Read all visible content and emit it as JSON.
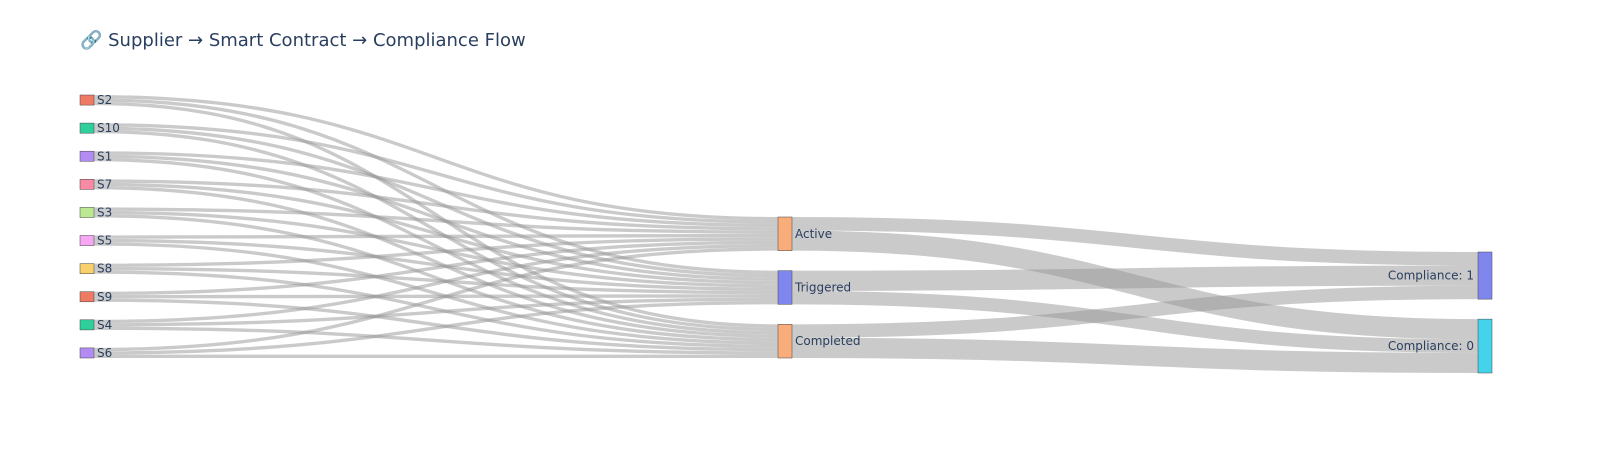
{
  "chart_data": {
    "type": "sankey",
    "title": "🔗 Supplier → Smart Contract → Compliance Flow",
    "nodes": [
      {
        "id": "S2",
        "label": "S2",
        "color": "#ef7a63"
      },
      {
        "id": "S10",
        "label": "S10",
        "color": "#2fcf9b"
      },
      {
        "id": "S1",
        "label": "S1",
        "color": "#b28cf2"
      },
      {
        "id": "S7",
        "label": "S7",
        "color": "#f98aa5"
      },
      {
        "id": "S3",
        "label": "S3",
        "color": "#bde893"
      },
      {
        "id": "S5",
        "label": "S5",
        "color": "#f6a8f4"
      },
      {
        "id": "S8",
        "label": "S8",
        "color": "#f8d16d"
      },
      {
        "id": "S9",
        "label": "S9",
        "color": "#ef7a63"
      },
      {
        "id": "S4",
        "label": "S4",
        "color": "#2fcf9b"
      },
      {
        "id": "S6",
        "label": "S6",
        "color": "#b28cf2"
      },
      {
        "id": "Active",
        "label": "Active",
        "color": "#f8ad7a"
      },
      {
        "id": "Triggered",
        "label": "Triggered",
        "color": "#7f86ee"
      },
      {
        "id": "Completed",
        "label": "Completed",
        "color": "#f8ad7a"
      },
      {
        "id": "C1",
        "label": "Compliance: 1",
        "color": "#7f86ee"
      },
      {
        "id": "C0",
        "label": "Compliance: 0",
        "color": "#44d3ea"
      }
    ],
    "links": [
      {
        "source": "S2",
        "target": "Active",
        "value": 1
      },
      {
        "source": "S2",
        "target": "Triggered",
        "value": 1
      },
      {
        "source": "S2",
        "target": "Completed",
        "value": 1
      },
      {
        "source": "S10",
        "target": "Active",
        "value": 1
      },
      {
        "source": "S10",
        "target": "Triggered",
        "value": 1
      },
      {
        "source": "S10",
        "target": "Completed",
        "value": 1
      },
      {
        "source": "S1",
        "target": "Active",
        "value": 1
      },
      {
        "source": "S1",
        "target": "Triggered",
        "value": 1
      },
      {
        "source": "S1",
        "target": "Completed",
        "value": 1
      },
      {
        "source": "S7",
        "target": "Active",
        "value": 1
      },
      {
        "source": "S7",
        "target": "Triggered",
        "value": 1
      },
      {
        "source": "S7",
        "target": "Completed",
        "value": 1
      },
      {
        "source": "S3",
        "target": "Active",
        "value": 1
      },
      {
        "source": "S3",
        "target": "Triggered",
        "value": 1
      },
      {
        "source": "S3",
        "target": "Completed",
        "value": 1
      },
      {
        "source": "S5",
        "target": "Active",
        "value": 1
      },
      {
        "source": "S5",
        "target": "Triggered",
        "value": 1
      },
      {
        "source": "S5",
        "target": "Completed",
        "value": 1
      },
      {
        "source": "S8",
        "target": "Active",
        "value": 1
      },
      {
        "source": "S8",
        "target": "Triggered",
        "value": 1
      },
      {
        "source": "S8",
        "target": "Completed",
        "value": 1
      },
      {
        "source": "S9",
        "target": "Active",
        "value": 1
      },
      {
        "source": "S9",
        "target": "Triggered",
        "value": 1
      },
      {
        "source": "S9",
        "target": "Completed",
        "value": 1
      },
      {
        "source": "S4",
        "target": "Active",
        "value": 1
      },
      {
        "source": "S4",
        "target": "Triggered",
        "value": 1
      },
      {
        "source": "S4",
        "target": "Completed",
        "value": 1
      },
      {
        "source": "S6",
        "target": "Active",
        "value": 1
      },
      {
        "source": "S6",
        "target": "Triggered",
        "value": 1
      },
      {
        "source": "S6",
        "target": "Completed",
        "value": 1
      },
      {
        "source": "Active",
        "target": "C1",
        "value": 4
      },
      {
        "source": "Active",
        "target": "C0",
        "value": 6
      },
      {
        "source": "Triggered",
        "target": "C1",
        "value": 6
      },
      {
        "source": "Triggered",
        "target": "C0",
        "value": 4
      },
      {
        "source": "Completed",
        "target": "C1",
        "value": 4
      },
      {
        "source": "Completed",
        "target": "C0",
        "value": 6
      }
    ]
  }
}
